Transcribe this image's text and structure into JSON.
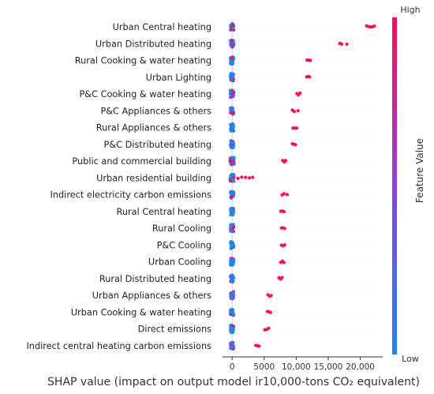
{
  "chart_data": {
    "type": "scatter",
    "subtype": "beeswarm",
    "xlabel": "SHAP value (impact on output model ir10,000-tons CO₂ equivalent)",
    "xlim": [
      -1500,
      23500
    ],
    "xticks": [
      {
        "value": 0,
        "label": "0"
      },
      {
        "value": 5000,
        "label": "5000"
      },
      {
        "value": 10000,
        "label": "10,000"
      },
      {
        "value": 15000,
        "label": "15,000"
      },
      {
        "value": 20000,
        "label": "20,000"
      }
    ],
    "colorbar": {
      "label": "Feature Value",
      "high_label": "High",
      "low_label": "Low",
      "low_color": "#1E88E5",
      "high_color": "#FF0D57"
    },
    "features": [
      {
        "name": "Urban Central heating",
        "low_spread": 260,
        "high_points": [
          21000,
          21300,
          21600,
          21900,
          22200
        ]
      },
      {
        "name": "Urban Distributed heating",
        "low_spread": 250,
        "high_points": [
          16800,
          17100,
          17900
        ]
      },
      {
        "name": "Rural Cooking & water heating",
        "low_spread": 250,
        "high_points": [
          11700,
          11950,
          12200
        ]
      },
      {
        "name": "Urban Lighting",
        "low_spread": 250,
        "high_points": [
          11650,
          11900,
          12100
        ]
      },
      {
        "name": "P&C Cooking & water heating",
        "low_spread": 300,
        "high_points": [
          10100,
          10350,
          10600
        ]
      },
      {
        "name": "P&C Appliances & others",
        "low_spread": 250,
        "high_points": [
          9400,
          9700,
          10300
        ]
      },
      {
        "name": "Rural Appliances & others",
        "low_spread": 250,
        "high_points": [
          9500,
          9800,
          10100
        ]
      },
      {
        "name": "P&C Distributed heating",
        "low_spread": 250,
        "high_points": [
          9400,
          9650,
          9900
        ]
      },
      {
        "name": "Public and commercial building",
        "low_spread": 320,
        "high_points": [
          7900,
          8150,
          8350
        ]
      },
      {
        "name": "Urban residential building",
        "low_spread": 300,
        "high_points": [
          900,
          1500,
          2100,
          2700,
          3200
        ]
      },
      {
        "name": "Indirect electricity carbon emissions",
        "low_spread": 250,
        "high_points": [
          7800,
          8100,
          8600
        ]
      },
      {
        "name": "Rural Central heating",
        "low_spread": 250,
        "high_points": [
          7600,
          7850,
          8100
        ]
      },
      {
        "name": "Rural Cooling",
        "low_spread": 250,
        "high_points": [
          7700,
          7950,
          8200
        ]
      },
      {
        "name": "P&C Cooling",
        "low_spread": 250,
        "high_points": [
          7700,
          7950,
          8200
        ]
      },
      {
        "name": "Urban Cooling",
        "low_spread": 250,
        "high_points": [
          7600,
          7850,
          8100
        ]
      },
      {
        "name": "Rural Distributed heating",
        "low_spread": 250,
        "high_points": [
          7300,
          7550,
          7800
        ]
      },
      {
        "name": "Urban Appliances & others",
        "low_spread": 250,
        "high_points": [
          5600,
          5850,
          6100
        ]
      },
      {
        "name": "Urban Cooking & water heating",
        "low_spread": 250,
        "high_points": [
          5500,
          5750,
          6000
        ]
      },
      {
        "name": "Direct emissions",
        "low_spread": 250,
        "high_points": [
          5100,
          5400,
          5700
        ]
      },
      {
        "name": "Indirect central heating carbon emissions",
        "low_spread": 250,
        "high_points": [
          3700,
          3950,
          4200
        ]
      }
    ]
  }
}
